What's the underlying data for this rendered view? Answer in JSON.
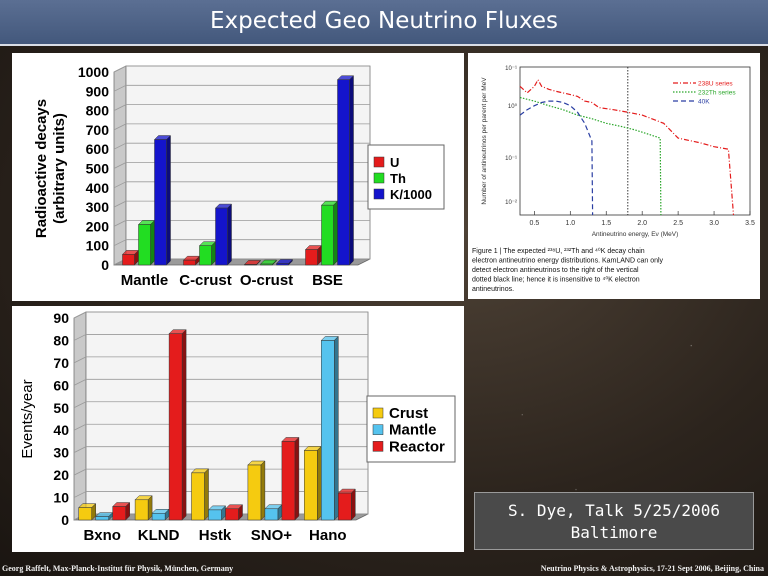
{
  "slide": {
    "title": "Expected Geo Neutrino Fluxes",
    "credit_line1": "S. Dye, Talk 5/25/2006",
    "credit_line2": "Baltimore",
    "footer_left": "Georg Raffelt, Max-Planck-Institut für Physik, München, Germany",
    "footer_right": "Neutrino Physics & Astrophysics, 17-21 Sept 2006, Beijing, China"
  },
  "colors": {
    "red": "#e41c1c",
    "green": "#22dd22",
    "blue": "#1414cc",
    "yellow": "#f5cb10",
    "lightblue": "#55c3ee"
  },
  "chart_data": [
    {
      "type": "bar",
      "ylabel": "Radioactive decays (arbitrary units)",
      "ylim": [
        0,
        1000
      ],
      "yticks": [
        0,
        100,
        200,
        300,
        400,
        500,
        600,
        700,
        800,
        900,
        1000
      ],
      "categories": [
        "Mantle",
        "C-crust",
        "O-crust",
        "BSE"
      ],
      "legend_position": "right",
      "series": [
        {
          "name": "U",
          "color": "#e41c1c",
          "values": [
            55,
            25,
            3,
            80
          ]
        },
        {
          "name": "Th",
          "color": "#22dd22",
          "values": [
            210,
            100,
            5,
            310
          ]
        },
        {
          "name": "K/1000",
          "color": "#1414cc",
          "values": [
            650,
            295,
            8,
            960
          ]
        }
      ]
    },
    {
      "type": "bar",
      "ylabel": "Events/year",
      "ylim": [
        0,
        90
      ],
      "yticks": [
        0,
        10,
        20,
        30,
        40,
        50,
        60,
        70,
        80,
        90
      ],
      "categories": [
        "Bxno",
        "KLND",
        "Hstk",
        "SNO+",
        "Hano"
      ],
      "legend_position": "right",
      "series": [
        {
          "name": "Crust",
          "color": "#f5cb10",
          "values": [
            5.5,
            9,
            21,
            24.5,
            31
          ]
        },
        {
          "name": "Mantle",
          "color": "#55c3ee",
          "values": [
            1.5,
            3,
            4.5,
            5,
            80
          ]
        },
        {
          "name": "Reactor",
          "color": "#e41c1c",
          "values": [
            6,
            83,
            5,
            35,
            12
          ]
        }
      ]
    },
    {
      "type": "line",
      "ylabel": "Number of antineutrinos per parent per MeV",
      "xlabel": "Antineutrino energy, Eν (MeV)",
      "xlim": [
        0.3,
        3.5
      ],
      "xticks": [
        "0.5",
        "1.0",
        "1.5",
        "2.0",
        "2.5",
        "3.0",
        "3.5"
      ],
      "yscale": "log",
      "ylim": [
        0.0001,
        1
      ],
      "yticks": [
        "10⁻¹",
        "10⁰",
        "10⁻¹",
        "10⁻²"
      ],
      "vline_x": 1.8,
      "legend_position": "top-right",
      "series": [
        {
          "name": "238U series",
          "color": "#e41c1c",
          "style": "dash-dot",
          "x": [
            0.3,
            0.4,
            0.5,
            0.55,
            0.6,
            0.7,
            0.8,
            0.9,
            1.0,
            1.1,
            1.2,
            1.3,
            1.4,
            1.6,
            1.8,
            2.0,
            2.3,
            2.5,
            2.8,
            3.0,
            3.2,
            3.27
          ],
          "y": [
            0.3,
            0.2,
            0.3,
            0.45,
            0.3,
            0.25,
            0.22,
            0.2,
            0.18,
            0.16,
            0.12,
            0.11,
            0.08,
            0.07,
            0.06,
            0.05,
            0.03,
            0.012,
            0.009,
            0.007,
            0.006,
            0.0001
          ]
        },
        {
          "name": "232Th series",
          "color": "#2aa62a",
          "style": "dotted",
          "x": [
            0.3,
            0.5,
            0.7,
            0.9,
            1.1,
            1.3,
            1.5,
            1.7,
            1.9,
            2.1,
            2.25,
            2.26
          ],
          "y": [
            0.15,
            0.12,
            0.09,
            0.07,
            0.05,
            0.04,
            0.03,
            0.025,
            0.02,
            0.015,
            0.012,
            0.0001
          ]
        },
        {
          "name": "40K",
          "color": "#2b3fa3",
          "style": "dashed",
          "x": [
            0.3,
            0.4,
            0.5,
            0.6,
            0.7,
            0.8,
            0.9,
            1.0,
            1.1,
            1.2,
            1.3,
            1.31
          ],
          "y": [
            0.05,
            0.07,
            0.09,
            0.11,
            0.12,
            0.12,
            0.11,
            0.09,
            0.06,
            0.03,
            0.01,
            0.0001
          ]
        }
      ],
      "caption": "Figure 1 | The expected ²³⁸U, ²³²Th and ⁴⁰K decay chain electron antineutrino energy distributions. KamLAND can only detect electron antineutrinos to the right of the vertical dotted black line; hence it is insensitive to ⁴⁰K electron antineutrinos."
    }
  ]
}
